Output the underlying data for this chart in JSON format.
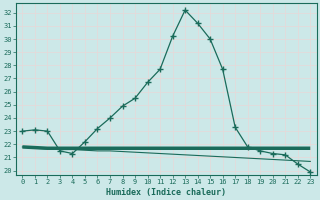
{
  "xlabel": "Humidex (Indice chaleur)",
  "xlim": [
    -0.5,
    23.5
  ],
  "ylim": [
    19.7,
    32.7
  ],
  "yticks": [
    20,
    21,
    22,
    23,
    24,
    25,
    26,
    27,
    28,
    29,
    30,
    31,
    32
  ],
  "xticks": [
    0,
    1,
    2,
    3,
    4,
    5,
    6,
    7,
    8,
    9,
    10,
    11,
    12,
    13,
    14,
    15,
    16,
    17,
    18,
    19,
    20,
    21,
    22,
    23
  ],
  "line_color": "#1a6b5a",
  "bg_color": "#cce8e8",
  "grid_color": "#e8d8d8",
  "line1_x": [
    0,
    1,
    2,
    3,
    4,
    5,
    6,
    7,
    8,
    9,
    10,
    11,
    12,
    13,
    14,
    15,
    16,
    17,
    18,
    19,
    20,
    21,
    22,
    23
  ],
  "line1_y": [
    23.0,
    23.1,
    23.0,
    21.5,
    21.3,
    22.2,
    23.2,
    24.0,
    24.9,
    25.5,
    26.7,
    27.7,
    30.2,
    32.2,
    31.2,
    30.0,
    27.7,
    23.3,
    21.8,
    21.5,
    21.3,
    21.2,
    20.5,
    19.9
  ],
  "line2_x": [
    0,
    1,
    2,
    3,
    4,
    5,
    6,
    7,
    8,
    9,
    10,
    11,
    12,
    13,
    14,
    15,
    16,
    17,
    18,
    19,
    20,
    21,
    22,
    23
  ],
  "line2_y": [
    21.8,
    21.7,
    21.65,
    21.6,
    21.6,
    21.55,
    21.5,
    21.5,
    21.45,
    21.4,
    21.35,
    21.3,
    21.25,
    21.2,
    21.15,
    21.1,
    21.05,
    21.0,
    20.95,
    20.9,
    20.85,
    20.8,
    20.75,
    20.7
  ],
  "line3_x": [
    0,
    1,
    2,
    3,
    4,
    5,
    6,
    7,
    8,
    9,
    10,
    11,
    12,
    13,
    14,
    15,
    16,
    17,
    18,
    19,
    20,
    21,
    22,
    23
  ],
  "line3_y": [
    21.8,
    21.75,
    21.7,
    21.7,
    21.7,
    21.7,
    21.7,
    21.7,
    21.7,
    21.7,
    21.7,
    21.7,
    21.7,
    21.7,
    21.7,
    21.7,
    21.7,
    21.7,
    21.7,
    21.7,
    21.7,
    21.7,
    21.7,
    21.7
  ]
}
